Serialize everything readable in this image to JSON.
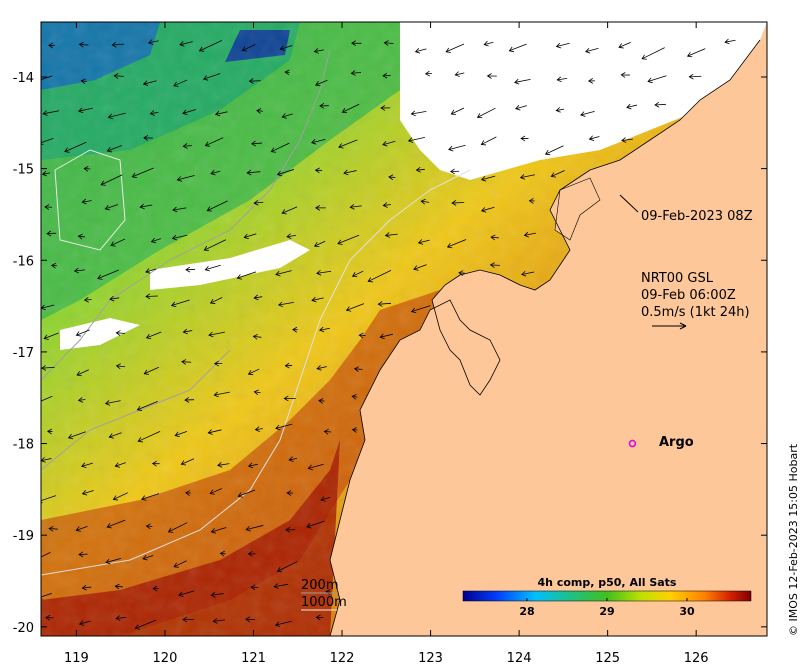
{
  "map": {
    "lon_range": [
      118.6,
      126.8
    ],
    "lat_range": [
      -20.1,
      -13.4
    ],
    "x_ticks": [
      "119",
      "120",
      "121",
      "122",
      "123",
      "124",
      "125",
      "126"
    ],
    "y_ticks": [
      "-14",
      "-15",
      "-16",
      "-17",
      "-18",
      "-19",
      "-20"
    ],
    "land_color": "#fdc79a",
    "cloud_color": "#ffffff"
  },
  "annotations": {
    "timestamp": "09-Feb-2023 08Z",
    "current_title": "NRT00 GSL",
    "current_time": "09-Feb 06:00Z",
    "current_scale": "0.5m/s (1kt 24h)",
    "argo_label": "Argo",
    "argo_lon": 125.28,
    "argo_lat": -18.0,
    "isobath_200": "200m",
    "isobath_1000": "1000m",
    "credit": "© IMOS 12-Feb-2023 15:05 Hobart"
  },
  "colorbar": {
    "title": "4h comp, p50, All Sats",
    "ticks": [
      "28",
      "29",
      "30"
    ],
    "tick_values": [
      28,
      29,
      30
    ],
    "range": [
      27.2,
      30.8
    ]
  }
}
